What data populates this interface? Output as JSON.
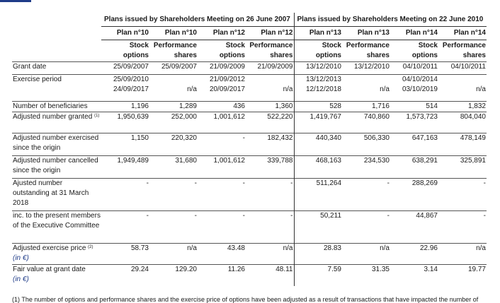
{
  "groups": [
    "Plans issued by Shareholders Meeting on 26 June 2007",
    "Plans issued by Shareholders Meeting on 22 June 2010"
  ],
  "plans": [
    "Plan n°10",
    "Plan n°10",
    "Plan n°12",
    "Plan n°12",
    "Plan n°13",
    "Plan n°13",
    "Plan n°14",
    "Plan n°14"
  ],
  "types": [
    [
      "Stock",
      "options"
    ],
    [
      "Performance",
      "shares"
    ],
    [
      "Stock",
      "options"
    ],
    [
      "Performance",
      "shares"
    ],
    [
      "Stock",
      "options"
    ],
    [
      "Performance",
      "shares"
    ],
    [
      "Stock",
      "options"
    ],
    [
      "Performance",
      "shares"
    ]
  ],
  "rows": [
    {
      "label": "Grant date",
      "sup": "",
      "unit": "",
      "height": 18,
      "values": [
        "25/09/2007",
        "25/09/2007",
        "21/09/2009",
        "21/09/2009",
        "13/12/2010",
        "13/12/2010",
        "04/10/2011",
        "04/10/2011"
      ]
    },
    {
      "label": "Exercise period",
      "sup": "",
      "unit": "",
      "height": 38,
      "values": [
        "25/09/2010\n24/09/2017",
        "\nn/a",
        "21/09/2012\n20/09/2017",
        "\nn/a",
        "13/12/2013\n12/12/2018",
        "\nn/a",
        "04/10/2014\n03/10/2019",
        "\nn/a"
      ]
    },
    {
      "label": "Number of beneficiaries",
      "sup": "",
      "unit": "",
      "height": 15,
      "values": [
        "1,196",
        "1,289",
        "436",
        "1,360",
        "528",
        "1,716",
        "514",
        "1,832"
      ]
    },
    {
      "label": "Adjusted number granted",
      "sup": "(1)",
      "unit": "",
      "height": 30,
      "values": [
        "1,950,639",
        "252,000",
        "1,001,612",
        "522,220",
        "1,419,767",
        "740,860",
        "1,573,723",
        "804,040"
      ]
    },
    {
      "label": "Adjusted number exercised since the origin",
      "sup": "",
      "unit": "",
      "height": 32,
      "values": [
        "1,150",
        "220,320",
        "-",
        "182,432",
        "440,340",
        "506,330",
        "647,163",
        "478,149"
      ]
    },
    {
      "label": "Adjusted number cancelled since the origin",
      "sup": "",
      "unit": "",
      "height": 32,
      "values": [
        "1,949,489",
        "31,680",
        "1,001,612",
        "339,788",
        "468,163",
        "234,530",
        "638,291",
        "325,891"
      ]
    },
    {
      "label": "Ajusted number outstanding at 31 March 2018",
      "sup": "",
      "unit": "",
      "height": 46,
      "values": [
        "-",
        "-",
        "-",
        "-",
        "511,264",
        "-",
        "288,269",
        "-"
      ]
    },
    {
      "label": "inc. to the present members of the Executive Committee",
      "sup": "",
      "unit": "",
      "height": 46,
      "values": [
        "-",
        "-",
        "-",
        "-",
        "50,211",
        "-",
        "44,867",
        "-"
      ]
    },
    {
      "label": "Adjusted exercise price",
      "sup": "(2)",
      "unit": "(in €)",
      "height": 30,
      "values": [
        "58.73",
        "n/a",
        "43.48",
        "n/a",
        "28.83",
        "n/a",
        "22.96",
        "n/a"
      ]
    },
    {
      "label": "Fair value at grant date",
      "sup": "",
      "unit": "(in €)",
      "height": 30,
      "values": [
        "29.24",
        "129.20",
        "11.26",
        "48.11",
        "7.59",
        "31.35",
        "3.14",
        "19.77"
      ]
    }
  ],
  "footnote": "(1) The number of options and performance shares and the exercise price of options have been adjusted as a result of transactions that have impacted the number of"
}
